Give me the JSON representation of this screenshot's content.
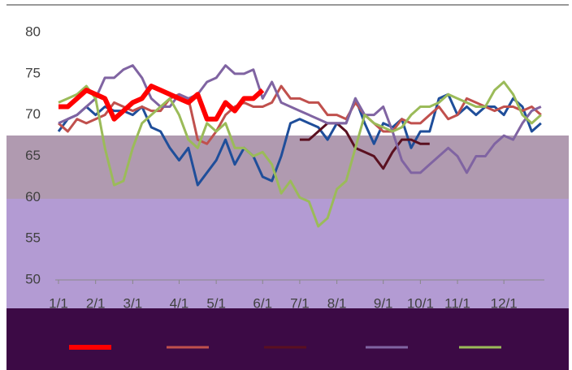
{
  "chart_data": {
    "type": "line",
    "categories": [
      "1/1",
      null,
      null,
      null,
      "2/1",
      null,
      null,
      null,
      "3/1",
      null,
      null,
      null,
      null,
      "4/1",
      null,
      null,
      null,
      "5/1",
      null,
      null,
      null,
      null,
      "6/1",
      null,
      null,
      null,
      "7/1",
      null,
      null,
      null,
      "8/1",
      null,
      null,
      null,
      null,
      "9/1",
      null,
      null,
      null,
      "10/1",
      null,
      null,
      null,
      "11/1",
      null,
      null,
      null,
      null,
      "12/1",
      null,
      null,
      null,
      null
    ],
    "ylim": [
      50,
      80
    ],
    "yticks": [
      50,
      55,
      60,
      65,
      70,
      75,
      80
    ],
    "grid": false,
    "series": [
      {
        "color": "#1f4e9a",
        "width": 3,
        "values": [
          68,
          69.5,
          70,
          71,
          70,
          71,
          70.5,
          70.5,
          70,
          71,
          68.5,
          68,
          66,
          64.5,
          66,
          61.5,
          63,
          64.5,
          67,
          64,
          66,
          65,
          62.5,
          62,
          65,
          69,
          69.5,
          69,
          68.5,
          67,
          69,
          69,
          72,
          69,
          66.5,
          69,
          68.5,
          69.5,
          66,
          68,
          68,
          72,
          72.5,
          70,
          71,
          70,
          71,
          71,
          70,
          72,
          71,
          68,
          69
        ]
      },
      {
        "color": "#c0504d",
        "width": 3,
        "values": [
          69,
          68,
          69.5,
          69,
          69.5,
          70,
          71.5,
          71,
          70.5,
          71,
          70.5,
          70.5,
          72,
          72.5,
          72,
          67,
          66.5,
          68,
          70,
          71,
          71.5,
          71,
          71,
          71.5,
          73.5,
          72,
          72,
          71.5,
          71.5,
          70,
          70,
          69.5,
          71.5,
          70,
          69,
          68,
          68,
          69.5,
          69,
          69,
          70,
          71,
          69.5,
          70,
          72,
          71.5,
          71,
          70.5,
          71,
          71,
          70.5,
          71,
          70
        ]
      },
      {
        "color": "#5a1020",
        "width": 3,
        "values": [
          null,
          null,
          null,
          null,
          null,
          null,
          null,
          null,
          null,
          null,
          null,
          null,
          null,
          null,
          null,
          null,
          null,
          null,
          null,
          null,
          null,
          null,
          null,
          null,
          null,
          null,
          67,
          67,
          68,
          69,
          69,
          68,
          66,
          65.5,
          65,
          63.5,
          65.5,
          67,
          67,
          66.5,
          66.5,
          null,
          null,
          null,
          null,
          null,
          null,
          null,
          null,
          null,
          null,
          null,
          null
        ]
      },
      {
        "color": "#8064a2",
        "width": 3,
        "values": [
          69,
          69.5,
          70,
          71,
          72,
          74.5,
          74.5,
          75.5,
          76,
          74.5,
          72,
          71,
          71,
          72.5,
          72,
          72.5,
          74,
          74.5,
          76,
          75,
          75,
          75.5,
          72,
          74,
          71.5,
          71,
          70.5,
          70,
          69.5,
          69,
          69,
          69,
          72,
          70,
          70,
          71,
          68,
          64.5,
          63,
          63,
          64,
          65,
          66,
          65,
          63,
          65,
          65,
          66.5,
          67.5,
          67,
          69,
          70.5,
          71
        ]
      },
      {
        "color": "#9bbb59",
        "width": 3,
        "values": [
          71.5,
          72,
          72.5,
          73.5,
          72,
          66,
          61.5,
          62,
          66,
          69,
          70,
          71,
          72,
          70,
          67,
          66,
          69,
          68,
          69,
          66,
          66,
          65,
          65.5,
          64,
          60.5,
          62,
          60,
          59.5,
          56.5,
          57.5,
          61,
          62,
          66,
          70,
          69,
          68.5,
          68,
          68.5,
          70,
          71,
          71,
          71.5,
          72.5,
          72,
          71.5,
          71,
          71,
          73,
          74,
          72.5,
          70,
          69,
          70
        ]
      },
      {
        "color": "#ff0000",
        "width": 6,
        "values": [
          71,
          71,
          72,
          73,
          72.5,
          72,
          69.5,
          70.5,
          71.5,
          72,
          73.5,
          73,
          72.5,
          72,
          71.5,
          72.5,
          69.5,
          69.5,
          71.5,
          70.5,
          72,
          72,
          73,
          null,
          null,
          null,
          null,
          null,
          null,
          null,
          null,
          null,
          null,
          null,
          null,
          null,
          null,
          null,
          null,
          null,
          null,
          null,
          null,
          null,
          null,
          null,
          null,
          null,
          null,
          null,
          null,
          null,
          null
        ]
      }
    ]
  }
}
